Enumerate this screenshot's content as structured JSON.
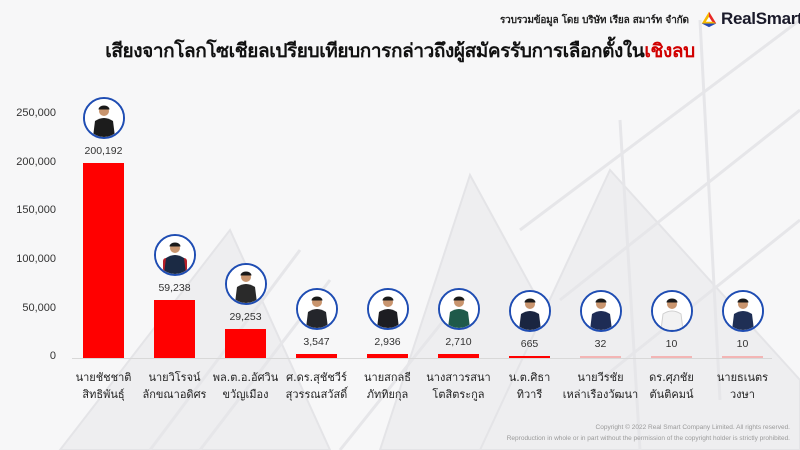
{
  "header": {
    "credit": "รวบรวมข้อมูล โดย บริษัท เรียล สมาร์ท จำกัด",
    "brand": "RealSmart",
    "logo_icon": "realsmart-logo-icon",
    "title_main": "เสียงจากโลกโซเชียลเปรียบเทียบการกล่าวถึงผู้สมัครรับการเลือกตั้งใน",
    "title_highlight": "เชิงลบ",
    "title_highlight_color": "#d10000"
  },
  "colors": {
    "bar": "#ff0000",
    "bar_faint": "#f3b5b5",
    "avatar_ring": "#1f4db3",
    "background": "#f7f7f8"
  },
  "footer": {
    "line1": "Copyright © 2022 Real Smart Company Limited. All rights reserved.",
    "line2": "Reproduction in whole  or in part without the permission of the copyright holder is strictly prohibited."
  },
  "chart_data": {
    "type": "bar",
    "title": "เสียงจากโลกโซเชียลเปรียบเทียบการกล่าวถึงผู้สมัครรับการเลือกตั้งในเชิงลบ",
    "xlabel": "",
    "ylabel": "",
    "ylim": [
      0,
      250000
    ],
    "yticks": [
      "250,000",
      "200,000",
      "150,000",
      "100,000",
      "50,000",
      "0"
    ],
    "grid": false,
    "legend": null,
    "categories": [
      {
        "line1": "นายชัชชาติ",
        "line2": "สิทธิพันธุ์"
      },
      {
        "line1": "นายวิโรจน์",
        "line2": "ลักขณาอดิศร"
      },
      {
        "line1": "พล.ต.อ.อัศวิน",
        "line2": "ขวัญเมือง"
      },
      {
        "line1": "ศ.ดร.สุชัชวีร์",
        "line2": "สุวรรณสวัสดิ์"
      },
      {
        "line1": "นายสกลธี",
        "line2": "ภัททิยกุล"
      },
      {
        "line1": "นางสาวรสนา",
        "line2": "โตสิตระกูล"
      },
      {
        "line1": "น.ต.ศิธา",
        "line2": "ทิวารี"
      },
      {
        "line1": "นายวีรชัย",
        "line2": "เหล่าเรืองวัฒนา"
      },
      {
        "line1": "ดร.ศุภชัย",
        "line2": "ตันติคมน์"
      },
      {
        "line1": "นายธเนตร",
        "line2": "วงษา"
      }
    ],
    "values": [
      200192,
      59238,
      29253,
      3547,
      2936,
      2710,
      665,
      32,
      10,
      10
    ],
    "value_labels": [
      "200,192",
      "59,238",
      "29,253",
      "3,547",
      "2,936",
      "2,710",
      "665",
      "32",
      "10",
      "10"
    ]
  }
}
